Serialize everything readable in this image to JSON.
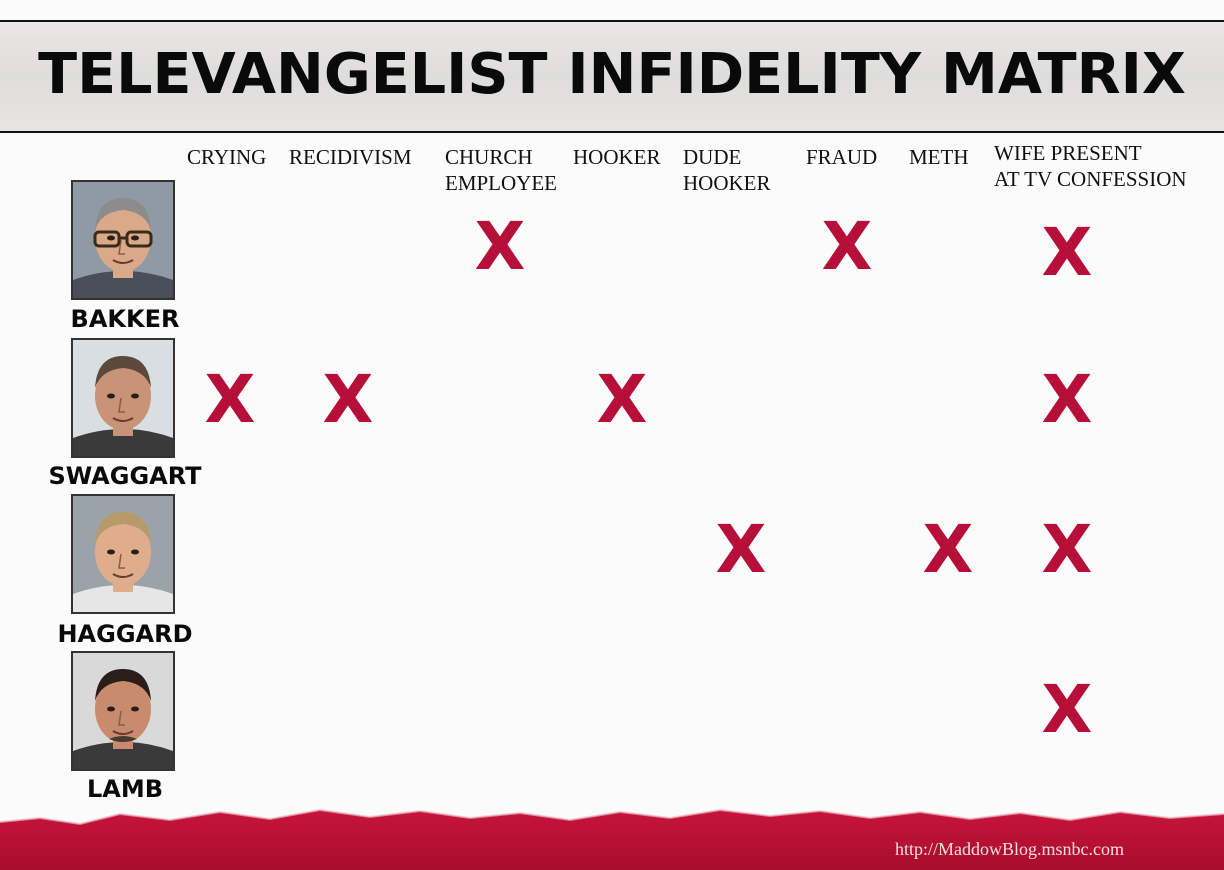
{
  "title": "TELEVANGELIST INFIDELITY MATRIX",
  "source_url": "http://MaddowBlog.msnbc.com",
  "colors": {
    "mark": "#b50f3a",
    "banner": "#b8102f",
    "header_bg": "#e2e1df"
  },
  "chart_data": {
    "type": "table",
    "columns": [
      "CRYING",
      "RECIDIVISM",
      "CHURCH\nEMPLOYEE",
      "HOOKER",
      "DUDE\nHOOKER",
      "FRAUD",
      "METH",
      "WIFE PRESENT\nAT TV CONFESSION"
    ],
    "rows": [
      {
        "name": "BAKKER",
        "photo_icon": "portrait-photo",
        "marks": [
          false,
          false,
          true,
          false,
          false,
          true,
          false,
          true
        ]
      },
      {
        "name": "SWAGGART",
        "photo_icon": "portrait-photo",
        "marks": [
          true,
          true,
          false,
          true,
          false,
          false,
          false,
          true
        ]
      },
      {
        "name": "HAGGARD",
        "photo_icon": "portrait-photo",
        "marks": [
          false,
          false,
          false,
          false,
          true,
          false,
          true,
          true
        ]
      },
      {
        "name": "LAMB",
        "photo_icon": "portrait-photo",
        "marks": [
          false,
          false,
          false,
          false,
          false,
          false,
          false,
          true
        ]
      }
    ],
    "mark_symbol": "X"
  }
}
